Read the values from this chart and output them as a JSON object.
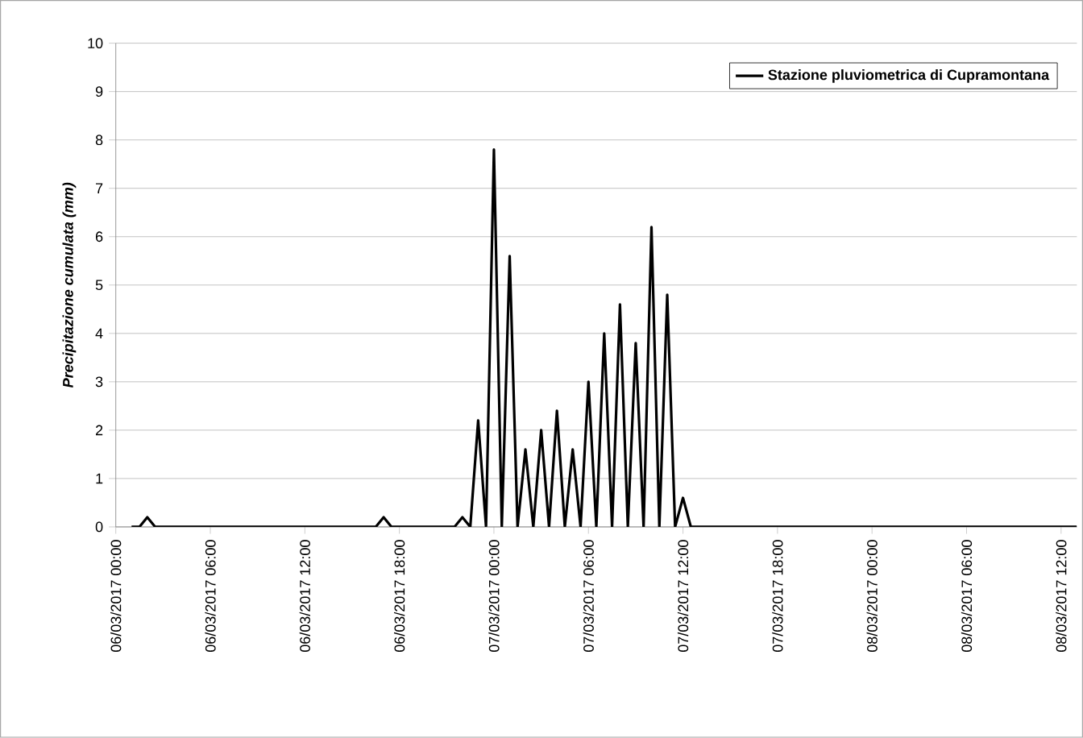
{
  "chart_data": {
    "type": "line",
    "ylabel": "Precipitazione cumulata (mm)",
    "x": [
      "2017-03-06T01:00",
      "2017-03-06T01:30",
      "2017-03-06T02:00",
      "2017-03-06T02:30",
      "2017-03-06T16:30",
      "2017-03-06T17:00",
      "2017-03-06T17:30",
      "2017-03-06T21:30",
      "2017-03-06T22:00",
      "2017-03-06T22:30",
      "2017-03-06T23:00",
      "2017-03-06T23:30",
      "2017-03-07T00:00",
      "2017-03-07T00:30",
      "2017-03-07T01:00",
      "2017-03-07T01:30",
      "2017-03-07T02:00",
      "2017-03-07T02:30",
      "2017-03-07T03:00",
      "2017-03-07T03:30",
      "2017-03-07T04:00",
      "2017-03-07T04:30",
      "2017-03-07T05:00",
      "2017-03-07T05:30",
      "2017-03-07T06:00",
      "2017-03-07T06:30",
      "2017-03-07T07:00",
      "2017-03-07T07:30",
      "2017-03-07T08:00",
      "2017-03-07T08:30",
      "2017-03-07T09:00",
      "2017-03-07T09:30",
      "2017-03-07T10:00",
      "2017-03-07T10:30",
      "2017-03-07T11:00",
      "2017-03-07T11:30",
      "2017-03-07T12:00",
      "2017-03-07T12:30",
      "2017-03-08T13:00"
    ],
    "series": [
      {
        "name": "Stazione pluviometrica di Cupramontana",
        "color": "#000000",
        "values": [
          0,
          0,
          0.2,
          0,
          0,
          0.2,
          0,
          0,
          0.2,
          0,
          2.2,
          0,
          7.8,
          0,
          5.6,
          0,
          1.6,
          0,
          2.0,
          0,
          2.4,
          0,
          1.6,
          0,
          3.0,
          0,
          4.0,
          0,
          4.6,
          0,
          3.8,
          0,
          6.2,
          0,
          4.8,
          0,
          0.6,
          0,
          0
        ]
      }
    ],
    "xlim": [
      "2017-03-06T00:00",
      "2017-03-08T13:00"
    ],
    "xticks": [
      {
        "value": "2017-03-06T00:00",
        "label": "06/03/2017 00:00"
      },
      {
        "value": "2017-03-06T06:00",
        "label": "06/03/2017 06:00"
      },
      {
        "value": "2017-03-06T12:00",
        "label": "06/03/2017 12:00"
      },
      {
        "value": "2017-03-06T18:00",
        "label": "06/03/2017 18:00"
      },
      {
        "value": "2017-03-07T00:00",
        "label": "07/03/2017 00:00"
      },
      {
        "value": "2017-03-07T06:00",
        "label": "07/03/2017 06:00"
      },
      {
        "value": "2017-03-07T12:00",
        "label": "07/03/2017 12:00"
      },
      {
        "value": "2017-03-07T18:00",
        "label": "07/03/2017 18:00"
      },
      {
        "value": "2017-03-08T00:00",
        "label": "08/03/2017 00:00"
      },
      {
        "value": "2017-03-08T06:00",
        "label": "08/03/2017 06:00"
      },
      {
        "value": "2017-03-08T12:00",
        "label": "08/03/2017 12:00"
      }
    ],
    "ylim": [
      0,
      10
    ],
    "yticks": [
      0,
      1,
      2,
      3,
      4,
      5,
      6,
      7,
      8,
      9,
      10
    ],
    "grid": "y",
    "legend": "top right",
    "marker": "none",
    "line_style": "solid"
  }
}
